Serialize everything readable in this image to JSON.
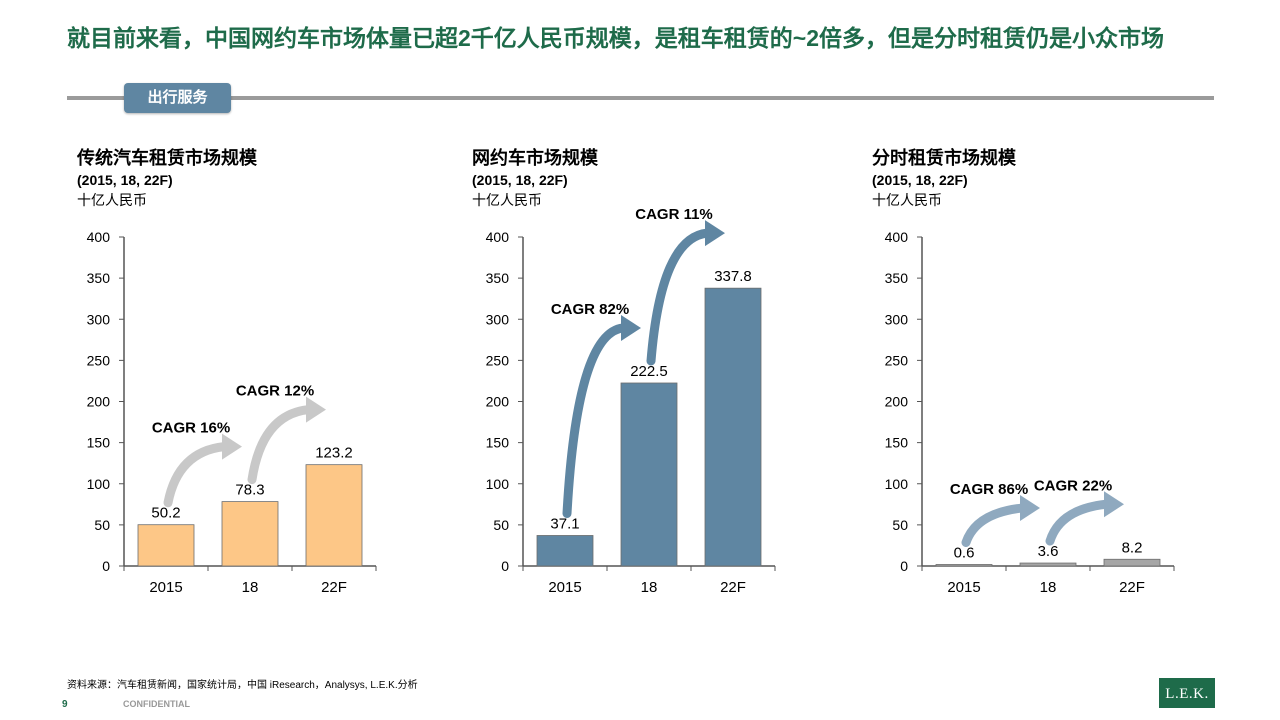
{
  "header": {
    "title": "就目前来看，中国网约车市场体量已超2千亿人民币规模，是租车租赁的~2倍多，但是分时租赁仍是小众市场",
    "section_tag": "出行服务"
  },
  "colors": {
    "orange": "#fdc787",
    "blue": "#5f86a2",
    "gray_bar": "#a6a6a6",
    "green": "#1e6b4a"
  },
  "chart_data": [
    {
      "type": "bar",
      "title": "传统汽车租赁市场规模",
      "subtitle": "(2015, 18, 22F)",
      "ylabel": "十亿人民币",
      "categories": [
        "2015",
        "18",
        "22F"
      ],
      "values": [
        50.2,
        78.3,
        123.2
      ],
      "value_labels": [
        "50.2",
        "78.3",
        "123.2"
      ],
      "ylim": [
        0,
        400
      ],
      "yticks": [
        0,
        50,
        100,
        150,
        200,
        250,
        300,
        350,
        400
      ],
      "bar_color": "orange",
      "annotations": [
        {
          "text": "CAGR 16%",
          "from": 0,
          "to": 1,
          "arrow_color": "#c8c8c8"
        },
        {
          "text": "CAGR 12%",
          "from": 1,
          "to": 2,
          "arrow_color": "#c8c8c8"
        }
      ]
    },
    {
      "type": "bar",
      "title": "网约车市场规模",
      "subtitle": "(2015, 18, 22F)",
      "ylabel": "十亿人民币",
      "categories": [
        "2015",
        "18",
        "22F"
      ],
      "values": [
        37.1,
        222.5,
        337.8
      ],
      "value_labels": [
        "37.1",
        "222.5",
        "337.8"
      ],
      "ylim": [
        0,
        400
      ],
      "yticks": [
        0,
        50,
        100,
        150,
        200,
        250,
        300,
        350,
        400
      ],
      "bar_color": "blue",
      "annotations": [
        {
          "text": "CAGR 82%",
          "from": 0,
          "to": 1,
          "arrow_color": "#5f86a2"
        },
        {
          "text": "CAGR 11%",
          "from": 1,
          "to": 2,
          "arrow_color": "#5f86a2"
        }
      ]
    },
    {
      "type": "bar",
      "title": "分时租赁市场规模",
      "subtitle": "(2015, 18, 22F)",
      "ylabel": "十亿人民币",
      "categories": [
        "2015",
        "18",
        "22F"
      ],
      "values": [
        0.6,
        3.6,
        8.2
      ],
      "value_labels": [
        "0.6",
        "3.6",
        "8.2"
      ],
      "ylim": [
        0,
        400
      ],
      "yticks": [
        0,
        50,
        100,
        150,
        200,
        250,
        300,
        350,
        400
      ],
      "bar_color": "gray_bar",
      "annotations": [
        {
          "text": "CAGR 86%",
          "from": 0,
          "to": 1,
          "arrow_color": "#8fa9bf"
        },
        {
          "text": "CAGR 22%",
          "from": 1,
          "to": 2,
          "arrow_color": "#8fa9bf"
        }
      ]
    }
  ],
  "footer": {
    "source": "资料来源：汽车租赁新闻，国家统计局，中国 iResearch，Analysys, L.E.K.分析",
    "page_number": "9",
    "confidential": "CONFIDENTIAL",
    "logo_text": "L.E.K."
  }
}
